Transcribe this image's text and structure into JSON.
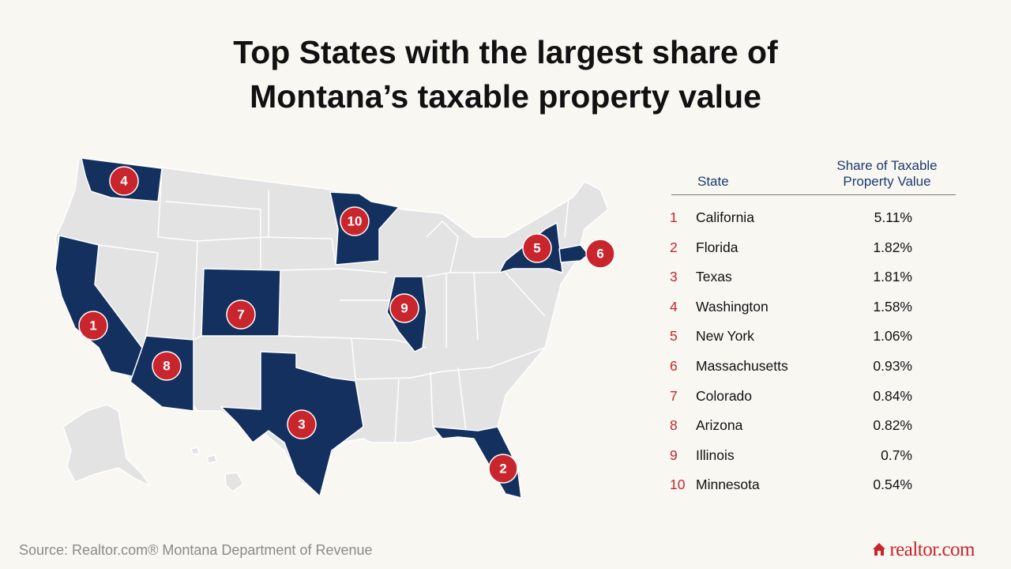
{
  "header": {
    "title": [
      "Top States with the largest share of",
      "Montana’s taxable property value"
    ]
  },
  "table": {
    "columns": [
      "State",
      "Share of Taxable Property Value"
    ],
    "rows": [
      {
        "rank": 1,
        "state": "California",
        "share": "5.11%"
      },
      {
        "rank": 2,
        "state": "Florida",
        "share": "1.82%"
      },
      {
        "rank": 3,
        "state": "Texas",
        "share": "1.81%"
      },
      {
        "rank": 4,
        "state": "Washington",
        "share": "1.58%"
      },
      {
        "rank": 5,
        "state": "New York",
        "share": "1.06%"
      },
      {
        "rank": 6,
        "state": "Massachusetts",
        "share": "0.93%"
      },
      {
        "rank": 7,
        "state": "Colorado",
        "share": "0.84%"
      },
      {
        "rank": 8,
        "state": "Arizona",
        "share": "0.82%"
      },
      {
        "rank": 9,
        "state": "Illinois",
        "share": "0.7%"
      },
      {
        "rank": 10,
        "state": "Minnesota",
        "share": "0.54%"
      }
    ]
  },
  "footer": {
    "source": "Source: Realtor.com® Montana Department of Revenue",
    "logo": "realtor.com"
  }
}
